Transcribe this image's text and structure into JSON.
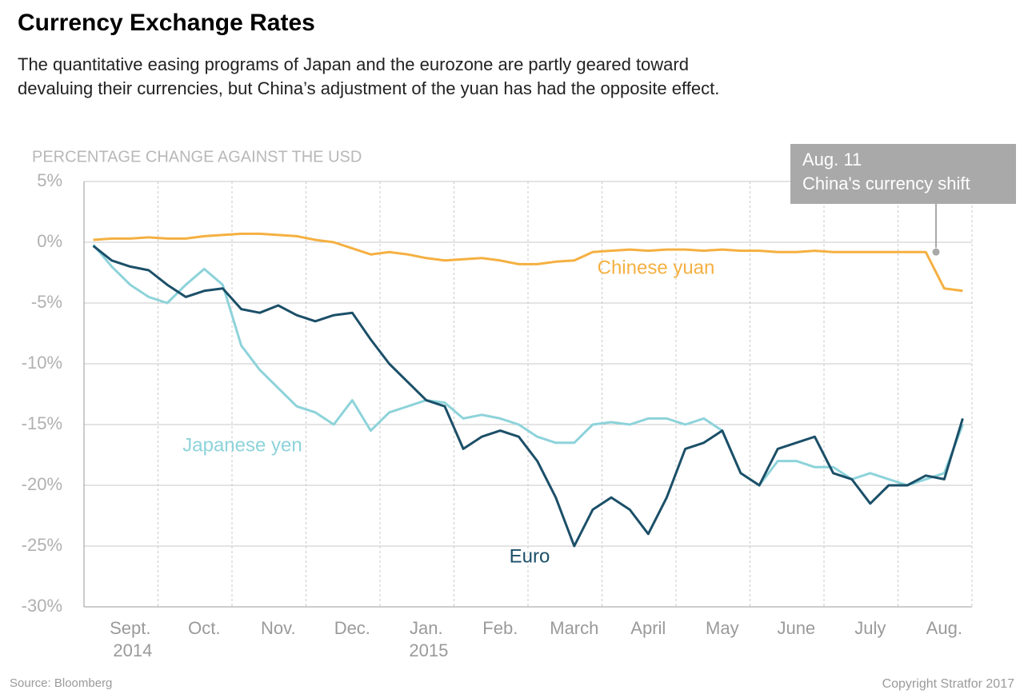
{
  "chart_data": {
    "type": "line",
    "title": "Currency Exchange Rates",
    "subtitle": "The quantitative easing programs of Japan and the eurozone are partly geared toward devaluing their currencies, but China’s adjustment of the yuan has had the opposite effect.",
    "y_axis_label": "PERCENTAGE CHANGE AGAINST THE USD",
    "source": "Source: Bloomberg",
    "copyright": "Copyright Stratfor 2017",
    "annotation": {
      "date": "Aug. 11",
      "text": "China's currency shift"
    },
    "categories": [
      null,
      null,
      "Sept. 2014",
      null,
      null,
      null,
      "Oct.",
      null,
      null,
      null,
      "Nov.",
      null,
      null,
      null,
      "Dec.",
      null,
      null,
      null,
      "Jan. 2015",
      null,
      null,
      null,
      "Feb.",
      null,
      null,
      null,
      "March",
      null,
      null,
      null,
      "April",
      null,
      null,
      null,
      "May",
      null,
      null,
      null,
      "June",
      null,
      null,
      null,
      "July",
      null,
      null,
      null,
      "Aug.",
      null
    ],
    "ylim": [
      -30,
      5
    ],
    "yticks": [
      {
        "value": 5,
        "label": "5%"
      },
      {
        "value": 0,
        "label": "0%"
      },
      {
        "value": -5,
        "label": "-5%"
      },
      {
        "value": -10,
        "label": "-10%"
      },
      {
        "value": -15,
        "label": "-15%"
      },
      {
        "value": -20,
        "label": "-20%"
      },
      {
        "value": -25,
        "label": "-25%"
      },
      {
        "value": -30,
        "label": "-30%"
      }
    ],
    "grid": true,
    "series": [
      {
        "name": "Chinese yuan",
        "color": "#f5b041",
        "values": [
          0.2,
          0.3,
          0.3,
          0.4,
          0.3,
          0.3,
          0.5,
          0.6,
          0.7,
          0.7,
          0.6,
          0.5,
          0.2,
          0,
          -0.5,
          -1,
          -0.8,
          -1,
          -1.3,
          -1.5,
          -1.4,
          -1.3,
          -1.5,
          -1.8,
          -1.8,
          -1.6,
          -1.5,
          -0.8,
          -0.7,
          -0.6,
          -0.7,
          -0.6,
          -0.6,
          -0.7,
          -0.6,
          -0.7,
          -0.7,
          -0.8,
          -0.8,
          -0.7,
          -0.8,
          -0.8,
          -0.8,
          -0.8,
          -0.8,
          -0.8,
          -3.8,
          -4
        ]
      },
      {
        "name": "Japanese yen",
        "color": "#8dd3da",
        "values": [
          -0.2,
          -2,
          -3.5,
          -4.5,
          -5,
          -3.5,
          -2.2,
          -3.5,
          -8.5,
          -10.5,
          -12,
          -13.5,
          -14,
          -15,
          -13,
          -15.5,
          -14,
          -13.5,
          -13,
          -13.2,
          -14.5,
          -14.2,
          -14.5,
          -15,
          -16,
          -16.5,
          -16.5,
          -15,
          -14.8,
          -15,
          -14.5,
          -14.5,
          -15,
          -14.5,
          -15.5,
          -19,
          -20,
          -18,
          -18,
          -18.5,
          -18.5,
          -19.5,
          -19,
          -19.5,
          -20,
          -19.5,
          -19,
          -15
        ]
      },
      {
        "name": "Euro",
        "color": "#1b4f68",
        "values": [
          -0.3,
          -1.5,
          -2,
          -2.3,
          -3.5,
          -4.5,
          -4,
          -3.8,
          -5.5,
          -5.8,
          -5.2,
          -6,
          -6.5,
          -6,
          -5.8,
          -8,
          -10,
          -11.5,
          -13,
          -13.5,
          -17,
          -16,
          -15.5,
          -16,
          -18,
          -21,
          -25,
          -22,
          -21,
          -22,
          -24,
          -21,
          -17,
          -16.5,
          -15.5,
          -19,
          -20,
          -17,
          -16.5,
          -16,
          -19,
          -19.5,
          -21.5,
          -20,
          -20,
          -19.2,
          -19.5,
          -14.5
        ]
      }
    ]
  }
}
